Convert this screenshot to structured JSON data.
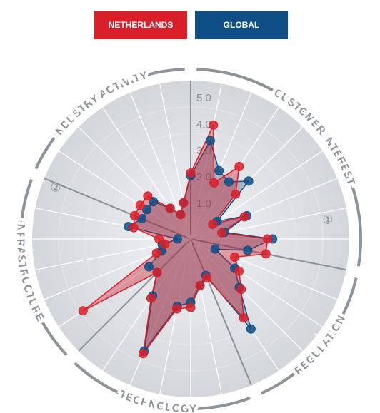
{
  "chart_data": {
    "type": "radar",
    "legend": [
      {
        "name": "NETHERLANDS",
        "color": "#d9202a"
      },
      {
        "name": "GLOBAL",
        "color": "#0f4f86"
      }
    ],
    "categories": [
      null,
      null,
      null,
      null,
      null,
      null,
      null,
      null,
      null,
      null,
      null,
      null,
      null,
      null,
      null,
      null,
      null,
      null,
      null,
      null,
      null,
      null,
      null,
      null,
      null,
      null,
      null,
      null,
      null,
      null,
      null,
      null
    ],
    "groups": [
      {
        "name": "CUSTOMER INTEREST",
        "size": 9
      },
      {
        "name": "REGULATION",
        "size": 5
      },
      {
        "name": "TECHNOLOGY",
        "size": 6
      },
      {
        "name": "INFRASTRUCTURE",
        "size": 6
      },
      {
        "name": "INDUSTRY ACTIVITY",
        "size": 6
      }
    ],
    "series": [
      {
        "name": "GLOBAL",
        "color": "#0f4f86",
        "values": [
          2.4,
          3.8,
          2.8,
          2.6,
          3.1,
          1.2,
          2.3,
          1.3,
          3.1,
          2.2,
          1.0,
          2.0,
          2.6,
          4.1,
          1.5,
          1.8,
          2.4,
          2.6,
          4.6,
          2.6,
          1.8,
          1.9,
          1.2,
          1.1,
          0.5,
          2.4,
          2.0,
          2.0,
          2.0,
          1.4,
          1.0,
          1.4
        ]
      },
      {
        "name": "NETHERLANDS",
        "color": "#d9202a",
        "values": [
          2.5,
          4.4,
          2.3,
          3.3,
          2.4,
          1.0,
          2.2,
          1.2,
          2.9,
          2.9,
          1.8,
          2.2,
          2.7,
          3.6,
          1.6,
          1.8,
          2.6,
          2.7,
          4.7,
          2.7,
          1.8,
          4.9,
          1.4,
          1.0,
          1.2,
          2.2,
          2.3,
          2.3,
          2.3,
          1.4,
          1.0,
          1.4
        ]
      }
    ],
    "rlim": [
      0,
      6
    ],
    "rticks": [
      {
        "value": 1,
        "label": "1.0"
      },
      {
        "value": 2,
        "label": "2.0"
      },
      {
        "value": 3,
        "label": "3.0"
      },
      {
        "value": 4,
        "label": "4.0"
      },
      {
        "value": 5,
        "label": "5.0"
      }
    ],
    "annotations": [
      "①",
      "②"
    ]
  }
}
